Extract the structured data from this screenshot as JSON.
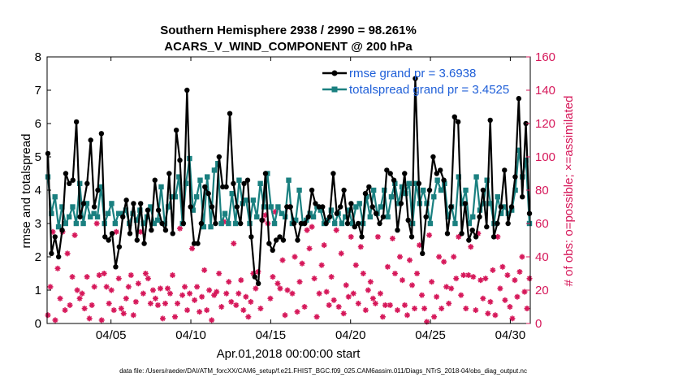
{
  "chart_data": {
    "type": "line",
    "title_line1": "Southern Hemisphere 2938 / 2990 = 98.261%",
    "title_line2": "ACARS_V_WIND_COMPONENT @ 200 hPa",
    "xlabel": "Apr.01,2018 00:00:00 start",
    "ylabel_left": "rmse and totalspread",
    "ylabel_right": "# of obs: o=possible; ×=assimilated",
    "footer": "data file: /Users/raeder/DAI/ATM_forcXX/CAM6_setup/f.e21.FHIST_BGC.f09_025.CAM6assim.011/Diags_NTrS_2018-04/obs_diag_output.nc",
    "x_range_days": [
      1.0,
      31.25
    ],
    "x_ticks": [
      5,
      10,
      15,
      20,
      25,
      30
    ],
    "x_tick_labels": [
      "04/05",
      "04/10",
      "04/15",
      "04/20",
      "04/25",
      "04/30"
    ],
    "y_left_range": [
      0,
      8
    ],
    "y_left_ticks": [
      "0",
      "1",
      "2",
      "3",
      "4",
      "5",
      "6",
      "7",
      "8"
    ],
    "y_right_range": [
      0,
      160
    ],
    "y_right_ticks": [
      "0",
      "20",
      "40",
      "60",
      "80",
      "100",
      "120",
      "140",
      "160"
    ],
    "colors": {
      "rmse": "#000000",
      "spread": "#1a8080",
      "obs": "#d6185a",
      "legend_text": "#1f5fd8"
    },
    "series": [
      {
        "name": "rmse grand pr = 3.6938",
        "values": [
          5.1,
          2.1,
          2.6,
          2.0,
          2.8,
          4.5,
          4.2,
          4.3,
          6.05,
          3.2,
          3.6,
          4.2,
          5.5,
          3.5,
          4.0,
          5.7,
          2.6,
          2.5,
          2.7,
          1.7,
          2.3,
          3.2,
          3.7,
          2.7,
          3.6,
          2.5,
          3.6,
          2.4,
          3.4,
          2.8,
          4.3,
          3.4,
          3.0,
          2.8,
          4.5,
          2.7,
          5.8,
          4.9,
          3.0,
          7.0,
          3.5,
          2.4,
          2.4,
          3.0,
          4.1,
          3.9,
          3.5,
          3.0,
          5.0,
          4.1,
          4.1,
          6.3,
          4.2,
          3.5,
          3.0,
          4.2,
          4.3,
          2.6,
          1.4,
          1.2,
          3.1,
          4.5,
          2.4,
          2.2,
          2.5,
          2.6,
          2.5,
          3.5,
          3.5,
          3.0,
          2.5,
          3.0,
          3.0,
          3.2,
          4.0,
          3.6,
          3.5,
          3.5,
          3.0,
          3.2,
          4.5,
          3.3,
          3.5,
          4.0,
          3.0,
          3.6,
          2.9,
          3.0,
          2.6,
          3.9,
          4.1,
          3.5,
          3.3,
          3.0,
          3.2,
          4.6,
          4.5,
          4.3,
          2.8,
          3.6,
          4.5,
          3.1,
          2.6,
          7.35,
          4.2,
          2.1,
          3.2,
          4.0,
          5.0,
          4.5,
          4.6,
          4.3,
          2.7,
          3.5,
          6.2,
          6.05,
          2.7,
          3.6,
          2.5,
          2.8,
          2.6,
          3.2,
          4.0,
          2.9,
          6.1,
          2.6,
          3.0,
          3.5,
          4.6,
          3.0,
          3.5,
          4.4,
          6.75,
          3.8,
          6.0,
          3.3
        ]
      },
      {
        "name": "totalspread grand pr = 3.4525",
        "values": [
          4.4,
          3.3,
          3.8,
          2.9,
          3.5,
          3.0,
          3.2,
          3.5,
          3.0,
          4.2,
          3.0,
          3.6,
          3.2,
          3.3,
          3.2,
          4.1,
          3.0,
          3.3,
          3.6,
          3.0,
          3.3,
          3.3,
          3.4,
          3.0,
          3.3,
          3.1,
          3.4,
          3.0,
          3.2,
          3.5,
          3.0,
          3.1,
          4.1,
          3.0,
          3.5,
          3.8,
          3.8,
          4.4,
          3.0,
          4.2,
          4.95,
          3.4,
          3.8,
          4.3,
          2.9,
          4.4,
          2.9,
          4.6,
          4.8,
          3.0,
          3.3,
          3.0,
          3.9,
          3.0,
          4.3,
          3.6,
          3.7,
          3.0,
          3.7,
          3.2,
          4.2,
          3.5,
          4.5,
          3.5,
          3.0,
          3.5,
          3.3,
          3.2,
          4.3,
          3.0,
          3.1,
          4.0,
          3.0,
          3.1,
          3.3,
          3.2,
          3.5,
          3.4,
          3.0,
          3.1,
          3.4,
          3.0,
          3.3,
          3.0,
          3.2,
          3.4,
          3.0,
          3.5,
          3.6,
          3.0,
          3.8,
          3.2,
          4.0,
          3.3,
          3.5,
          4.0,
          3.2,
          3.8,
          4.2,
          3.6,
          4.1,
          3.9,
          4.2,
          3.0,
          4.2,
          3.6,
          4.0,
          3.6,
          3.0,
          3.8,
          4.3,
          4.0,
          4.2,
          3.2,
          3.5,
          3.0,
          4.4,
          3.6,
          4.0,
          3.0,
          3.2,
          4.4,
          3.4,
          3.6,
          4.3,
          3.6,
          3.0,
          3.8,
          3.3,
          3.5,
          3.3,
          3.4,
          4.0,
          5.2,
          4.4,
          4.9,
          3.0
        ]
      },
      {
        "name": "obs_possible",
        "values": [
          5,
          22,
          55,
          2,
          33,
          15,
          55,
          8,
          42,
          11,
          28,
          53,
          20,
          15,
          18,
          9,
          28,
          3,
          11,
          22,
          60,
          29,
          2,
          30,
          22,
          12,
          20,
          8,
          55,
          27,
          9,
          6,
          15,
          22,
          29,
          5,
          13,
          24,
          55,
          18,
          30,
          27,
          12,
          20,
          15,
          11,
          21,
          3,
          12,
          21,
          18,
          29,
          4,
          12,
          57,
          17,
          22,
          8,
          18,
          45,
          14,
          22,
          7,
          16,
          32,
          8,
          20,
          2,
          17,
          19,
          30,
          10,
          61,
          18,
          25,
          13,
          48,
          11,
          18,
          26,
          8,
          16,
          4,
          13,
          30,
          21,
          31,
          9,
          62,
          65,
          60,
          15,
          28,
          67,
          24,
          21,
          38,
          5,
          20,
          70,
          18,
          40,
          7,
          25,
          36,
          10,
          56,
          45,
          58,
          27,
          4,
          18,
          35,
          47,
          19,
          11,
          28,
          14,
          56,
          10,
          42,
          6,
          23,
          16,
          52,
          18,
          35,
          12,
          46,
          30,
          8,
          20,
          25,
          15,
          12,
          52,
          18,
          4,
          11,
          34,
          11,
          51,
          30,
          8,
          40,
          26,
          11,
          5,
          38,
          23,
          9,
          30,
          47,
          17,
          9,
          1,
          53,
          25,
          4,
          16,
          40,
          9,
          37,
          22,
          12,
          21,
          40,
          27,
          52,
          17,
          29,
          9,
          29,
          46,
          28,
          8,
          54,
          26,
          15,
          27,
          6,
          13,
          32,
          5,
          52,
          21,
          34,
          14,
          29,
          10,
          3,
          26,
          16,
          31,
          40,
          19,
          9,
          27
        ]
      }
    ]
  },
  "legend": {
    "rmse_label": "rmse grand pr = 3.6938",
    "spread_label": "totalspread grand pr = 3.4525"
  }
}
